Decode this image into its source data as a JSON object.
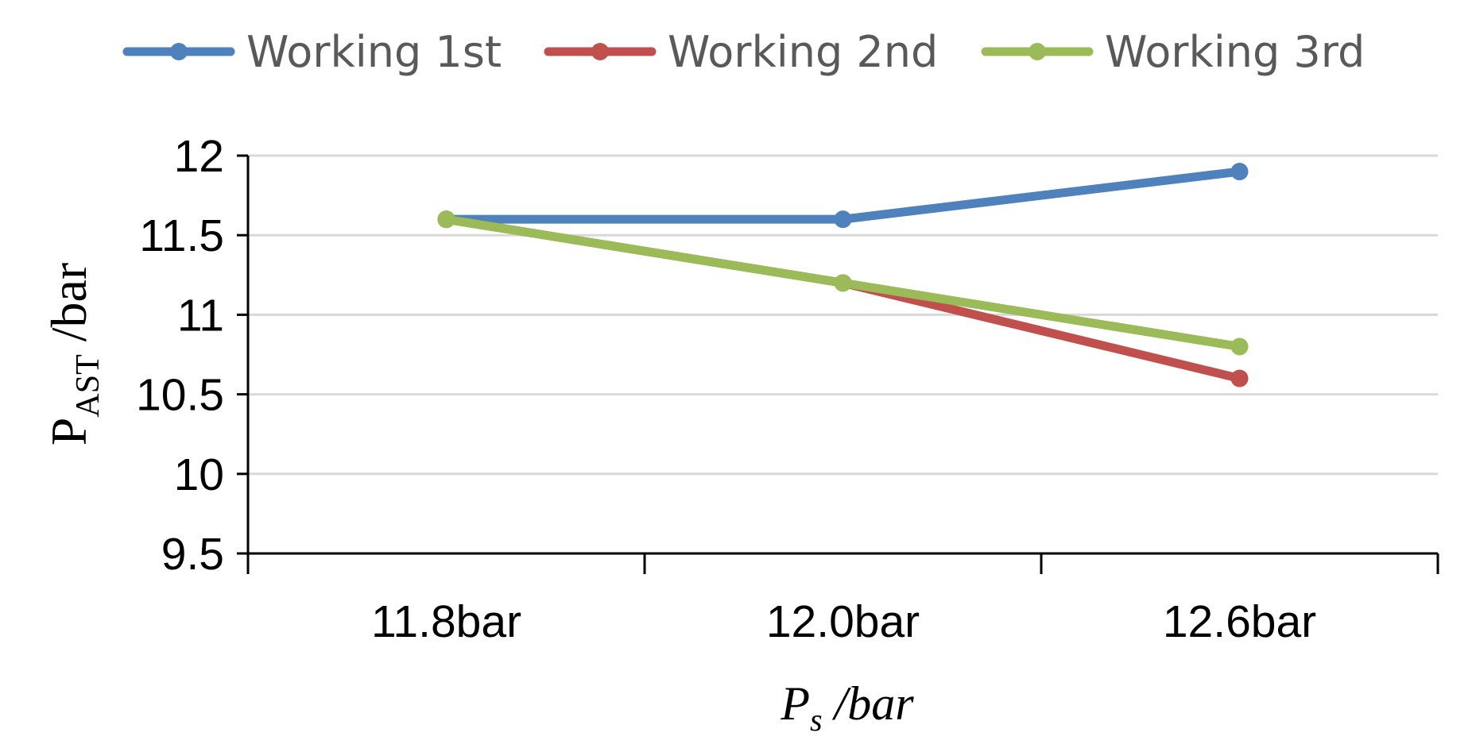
{
  "chart_data": {
    "type": "line",
    "categories": [
      "11.8bar",
      "12.0bar",
      "12.6bar"
    ],
    "series": [
      {
        "name": "Working 1st",
        "values": [
          11.6,
          11.6,
          11.9
        ],
        "color": "#4F81BD"
      },
      {
        "name": "Working 2nd",
        "values": [
          11.6,
          11.2,
          10.6
        ],
        "color": "#C0504D"
      },
      {
        "name": "Working 3rd",
        "values": [
          11.6,
          11.2,
          10.8
        ],
        "color": "#9BBB59"
      }
    ],
    "ylim": [
      9.5,
      12
    ],
    "yticks": [
      "9.5",
      "10",
      "10.5",
      "11",
      "11.5",
      "12"
    ],
    "xlabel": {
      "main": "P",
      "sub": "s",
      "rest": " /bar"
    },
    "ylabel": {
      "main": "P",
      "sub": "AST",
      "rest": " /bar"
    },
    "grid": true,
    "legend_position": "top",
    "grid_color": "#D9D9D9"
  }
}
